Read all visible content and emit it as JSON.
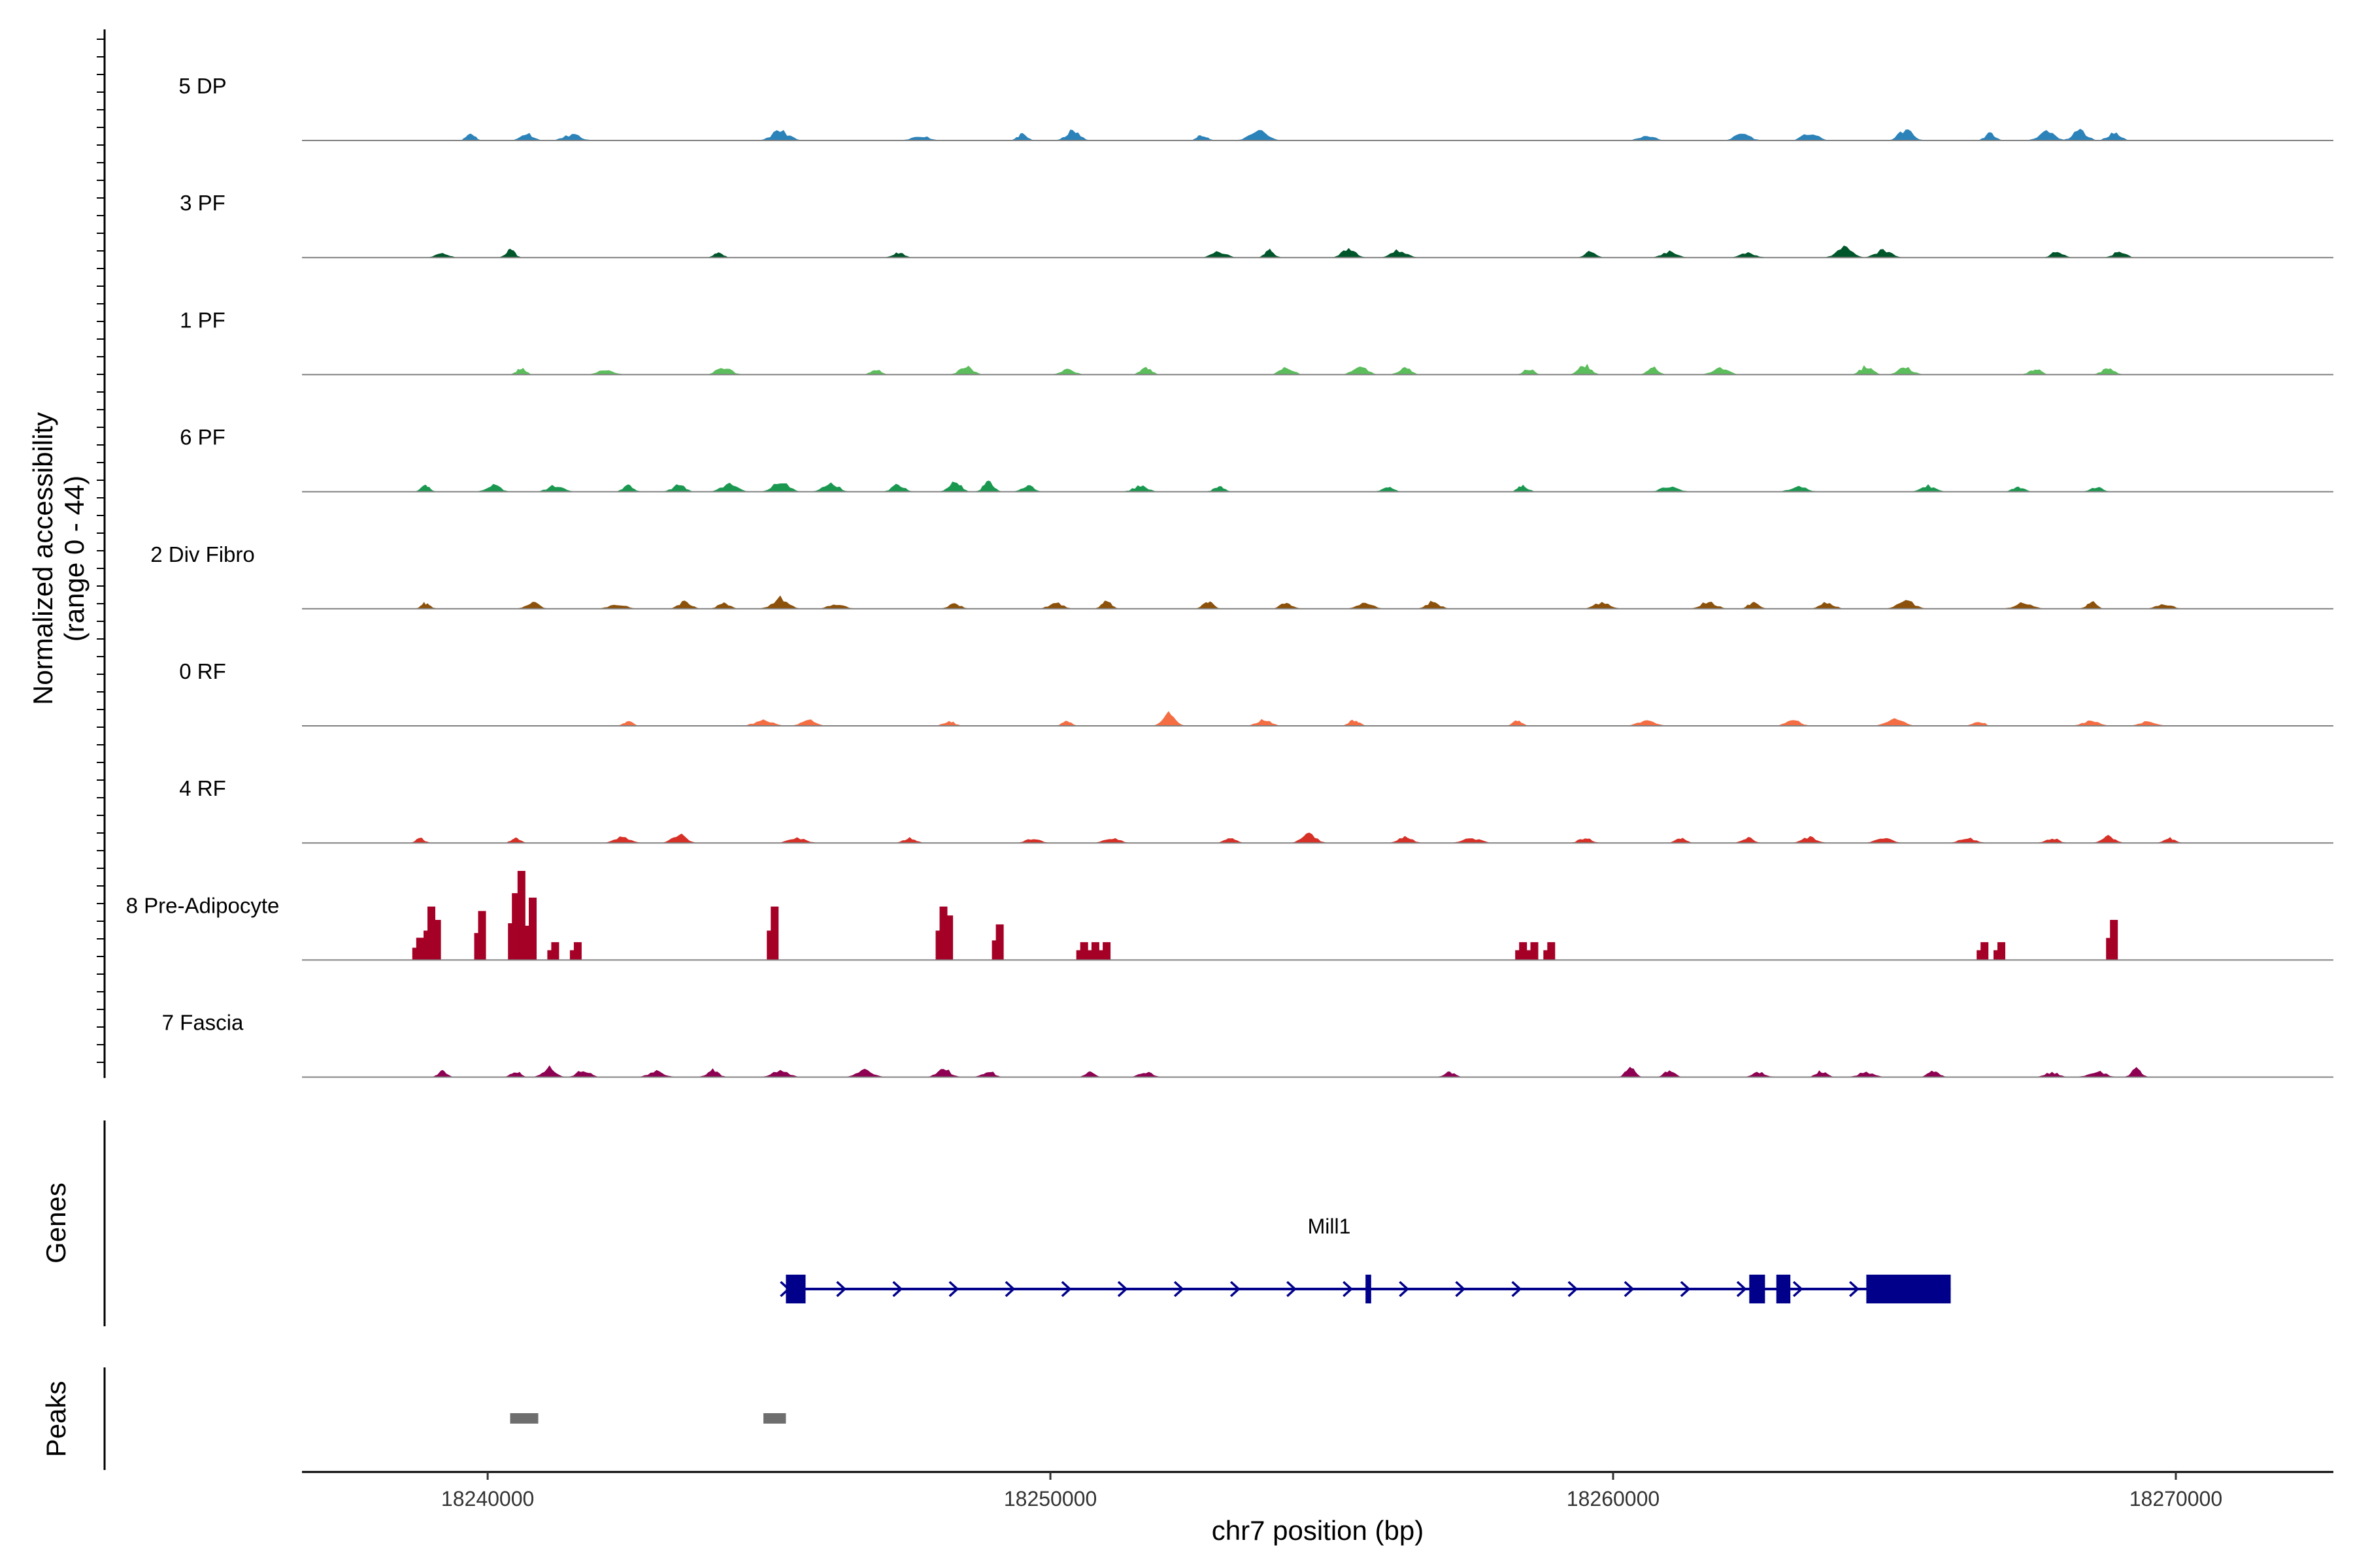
{
  "chart_data": {
    "type": "area",
    "panels": {
      "coverage_ylabel_line1": "Normalized accessibility",
      "coverage_ylabel_line2": "(range 0 - 44)",
      "genes_label": "Genes",
      "peaks_label": "Peaks"
    },
    "xlabel": "chr7 position (bp)",
    "xlim": [
      18236700,
      18272800
    ],
    "ylim": [
      0,
      44
    ],
    "xticks": [
      {
        "value": 18240000,
        "label": "18240000"
      },
      {
        "value": 18250000,
        "label": "18250000"
      },
      {
        "value": 18260000,
        "label": "18260000"
      },
      {
        "value": 18270000,
        "label": "18270000"
      }
    ],
    "tracks": [
      {
        "name": "5 DP",
        "color": "#2b83ba",
        "peaks": [
          [
            18239700,
            3
          ],
          [
            18240700,
            3
          ],
          [
            18241500,
            2.5
          ],
          [
            18245200,
            4
          ],
          [
            18247700,
            2
          ],
          [
            18249500,
            2.5
          ],
          [
            18250400,
            4
          ],
          [
            18252700,
            2.5
          ],
          [
            18253700,
            4.5
          ],
          [
            18260600,
            2
          ],
          [
            18262300,
            3
          ],
          [
            18263500,
            3
          ],
          [
            18265200,
            4.5
          ],
          [
            18266700,
            3
          ],
          [
            18267700,
            3.5
          ],
          [
            18268300,
            4
          ],
          [
            18268900,
            3
          ]
        ],
        "seed": 11
      },
      {
        "name": "3 PF",
        "color": "#00562b",
        "peaks": [
          [
            18240400,
            3.5
          ],
          [
            18239200,
            2
          ],
          [
            18244100,
            2
          ],
          [
            18247300,
            2
          ],
          [
            18253000,
            2.5
          ],
          [
            18253900,
            3
          ],
          [
            18255300,
            4
          ],
          [
            18256200,
            3
          ],
          [
            18259600,
            2.5
          ],
          [
            18261000,
            2.5
          ],
          [
            18262400,
            2
          ],
          [
            18264100,
            4
          ],
          [
            18264800,
            3
          ],
          [
            18267900,
            2.5
          ],
          [
            18269000,
            2.5
          ]
        ],
        "seed": 23
      },
      {
        "name": "1 PF",
        "color": "#5cbd5c",
        "peaks": [
          [
            18240600,
            3
          ],
          [
            18242100,
            2
          ],
          [
            18244200,
            3
          ],
          [
            18246900,
            2.5
          ],
          [
            18248500,
            3.5
          ],
          [
            18250300,
            2
          ],
          [
            18251700,
            3
          ],
          [
            18254200,
            3
          ],
          [
            18255500,
            3.5
          ],
          [
            18256300,
            3
          ],
          [
            18258500,
            2.5
          ],
          [
            18259500,
            4
          ],
          [
            18260700,
            3
          ],
          [
            18261900,
            3
          ],
          [
            18264500,
            3.5
          ],
          [
            18265200,
            3
          ],
          [
            18267500,
            2.5
          ],
          [
            18268800,
            3
          ]
        ],
        "seed": 37
      },
      {
        "name": "6 PF",
        "color": "#1a9850",
        "peaks": [
          [
            18238900,
            2.5
          ],
          [
            18240100,
            3
          ],
          [
            18241200,
            2.5
          ],
          [
            18242500,
            2.5
          ],
          [
            18243400,
            3
          ],
          [
            18244300,
            3
          ],
          [
            18245200,
            4
          ],
          [
            18246100,
            3.5
          ],
          [
            18247300,
            3
          ],
          [
            18248300,
            5
          ],
          [
            18248900,
            4
          ],
          [
            18249600,
            2.5
          ],
          [
            18251600,
            2.5
          ],
          [
            18253000,
            2
          ],
          [
            18256000,
            2
          ],
          [
            18258400,
            2.5
          ],
          [
            18261000,
            2
          ],
          [
            18263300,
            2
          ],
          [
            18265600,
            2.5
          ],
          [
            18267200,
            2
          ],
          [
            18268600,
            2
          ]
        ],
        "seed": 41
      },
      {
        "name": "2 Div Fibro",
        "color": "#8c510a",
        "peaks": [
          [
            18238900,
            2.5
          ],
          [
            18240800,
            2.5
          ],
          [
            18242300,
            2
          ],
          [
            18243500,
            3
          ],
          [
            18244200,
            2.5
          ],
          [
            18245200,
            4.5
          ],
          [
            18246200,
            2
          ],
          [
            18248300,
            2
          ],
          [
            18250100,
            2.5
          ],
          [
            18251000,
            3
          ],
          [
            18252800,
            3
          ],
          [
            18254200,
            2.5
          ],
          [
            18255600,
            2.5
          ],
          [
            18256800,
            3
          ],
          [
            18259800,
            2.5
          ],
          [
            18261700,
            3
          ],
          [
            18262500,
            3
          ],
          [
            18263800,
            2.5
          ],
          [
            18265200,
            3.5
          ],
          [
            18267300,
            2.5
          ],
          [
            18268500,
            3
          ],
          [
            18269800,
            2
          ]
        ],
        "seed": 53
      },
      {
        "name": "0 RF",
        "color": "#f46d43",
        "peaks": [
          [
            18242500,
            2
          ],
          [
            18244900,
            2.5
          ],
          [
            18245700,
            2.5
          ],
          [
            18248200,
            2
          ],
          [
            18250300,
            2
          ],
          [
            18252100,
            5
          ],
          [
            18253800,
            2.5
          ],
          [
            18255400,
            2.5
          ],
          [
            18258300,
            2
          ],
          [
            18260600,
            2.5
          ],
          [
            18263200,
            2.5
          ],
          [
            18265000,
            3
          ],
          [
            18266500,
            2
          ],
          [
            18268500,
            2
          ],
          [
            18269500,
            2
          ]
        ],
        "seed": 67
      },
      {
        "name": "4 RF",
        "color": "#d73027",
        "peaks": [
          [
            18238800,
            2
          ],
          [
            18240500,
            2
          ],
          [
            18242400,
            2.5
          ],
          [
            18243400,
            3.5
          ],
          [
            18245500,
            2
          ],
          [
            18247500,
            2
          ],
          [
            18249700,
            2
          ],
          [
            18251100,
            2
          ],
          [
            18253200,
            2
          ],
          [
            18254600,
            3.5
          ],
          [
            18256300,
            2.5
          ],
          [
            18257500,
            2
          ],
          [
            18259500,
            2
          ],
          [
            18261200,
            2
          ],
          [
            18262400,
            2
          ],
          [
            18263500,
            2.5
          ],
          [
            18264800,
            2
          ],
          [
            18266300,
            2
          ],
          [
            18267800,
            2
          ],
          [
            18268800,
            3
          ],
          [
            18269900,
            2
          ]
        ],
        "seed": 79
      },
      {
        "name": "8 Pre-Adipocyte",
        "color": "#a50026",
        "bars": [
          [
            18238800,
            10
          ],
          [
            18239000,
            24
          ],
          [
            18239100,
            18
          ],
          [
            18239900,
            22
          ],
          [
            18240500,
            30
          ],
          [
            18240600,
            40
          ],
          [
            18240800,
            28
          ],
          [
            18241200,
            8
          ],
          [
            18241600,
            8
          ],
          [
            18245100,
            24
          ],
          [
            18248100,
            24
          ],
          [
            18248200,
            20
          ],
          [
            18249100,
            16
          ],
          [
            18250600,
            8
          ],
          [
            18250800,
            8
          ],
          [
            18251000,
            8
          ],
          [
            18258400,
            8
          ],
          [
            18258600,
            8
          ],
          [
            18258900,
            8
          ],
          [
            18266600,
            8
          ],
          [
            18266900,
            8
          ],
          [
            18268900,
            18
          ]
        ],
        "seed": 0
      },
      {
        "name": "7 Fascia",
        "color": "#8e0152",
        "peaks": [
          [
            18239200,
            2.5
          ],
          [
            18240500,
            2.5
          ],
          [
            18241100,
            4
          ],
          [
            18241700,
            3
          ],
          [
            18243000,
            2.5
          ],
          [
            18244000,
            3
          ],
          [
            18245200,
            2.5
          ],
          [
            18246700,
            3
          ],
          [
            18248100,
            3.5
          ],
          [
            18248900,
            2.5
          ],
          [
            18250700,
            2
          ],
          [
            18251700,
            2
          ],
          [
            18257100,
            2
          ],
          [
            18260300,
            4
          ],
          [
            18261000,
            2.5
          ],
          [
            18262600,
            2
          ],
          [
            18263700,
            2.5
          ],
          [
            18264500,
            2
          ],
          [
            18265700,
            2.5
          ],
          [
            18267800,
            2
          ],
          [
            18268600,
            2.5
          ],
          [
            18269300,
            3.5
          ]
        ],
        "seed": 97
      }
    ],
    "gene": {
      "name": "Mill1",
      "color": "#00008b",
      "start": 18245300,
      "end": 18266000,
      "exons": [
        [
          18245300,
          18245650
        ],
        [
          18255600,
          18255700
        ],
        [
          18262420,
          18262700
        ],
        [
          18262900,
          18263150
        ],
        [
          18264500,
          18266000
        ]
      ]
    },
    "peaks": [
      {
        "start": 18240400,
        "end": 18240900,
        "color": "#6e6e6e"
      },
      {
        "start": 18244900,
        "end": 18245300,
        "color": "#6e6e6e"
      }
    ]
  }
}
